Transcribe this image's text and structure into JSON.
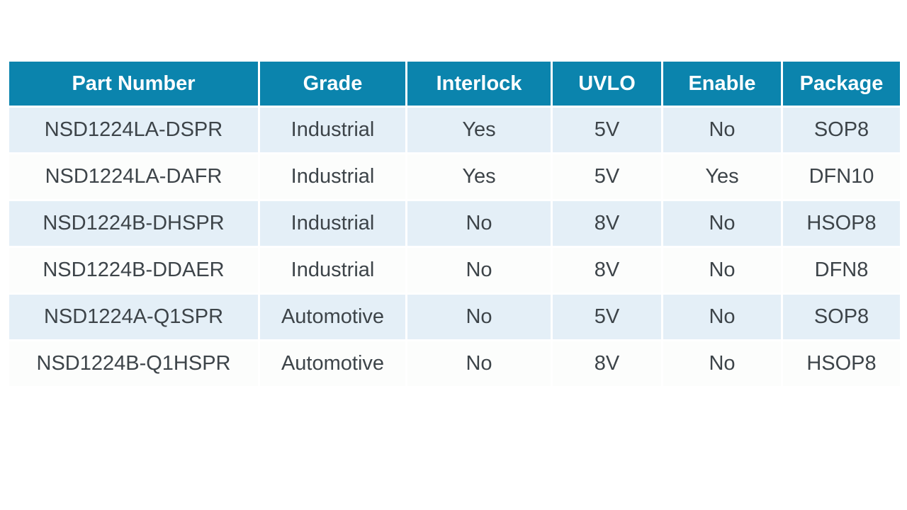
{
  "chart_data": {
    "type": "table",
    "columns": [
      "Part Number",
      "Grade",
      "Interlock",
      "UVLO",
      "Enable",
      "Package"
    ],
    "rows": [
      [
        "NSD1224LA-DSPR",
        "Industrial",
        "Yes",
        "5V",
        "No",
        "SOP8"
      ],
      [
        "NSD1224LA-DAFR",
        "Industrial",
        "Yes",
        "5V",
        "Yes",
        "DFN10"
      ],
      [
        "NSD1224B-DHSPR",
        "Industrial",
        "No",
        "8V",
        "No",
        "HSOP8"
      ],
      [
        "NSD1224B-DDAER",
        "Industrial",
        "No",
        "8V",
        "No",
        "DFN8"
      ],
      [
        "NSD1224A-Q1SPR",
        "Automotive",
        "No",
        "5V",
        "No",
        "SOP8"
      ],
      [
        "NSD1224B-Q1HSPR",
        "Automotive",
        "No",
        "8V",
        "No",
        "HSOP8"
      ]
    ]
  },
  "colors": {
    "header_bg": "#0b84ad",
    "header_text": "#ffffff",
    "row_alt_bg": "#e4eff7",
    "row_bg": "#fcfdfc",
    "body_text": "#3d4449"
  }
}
